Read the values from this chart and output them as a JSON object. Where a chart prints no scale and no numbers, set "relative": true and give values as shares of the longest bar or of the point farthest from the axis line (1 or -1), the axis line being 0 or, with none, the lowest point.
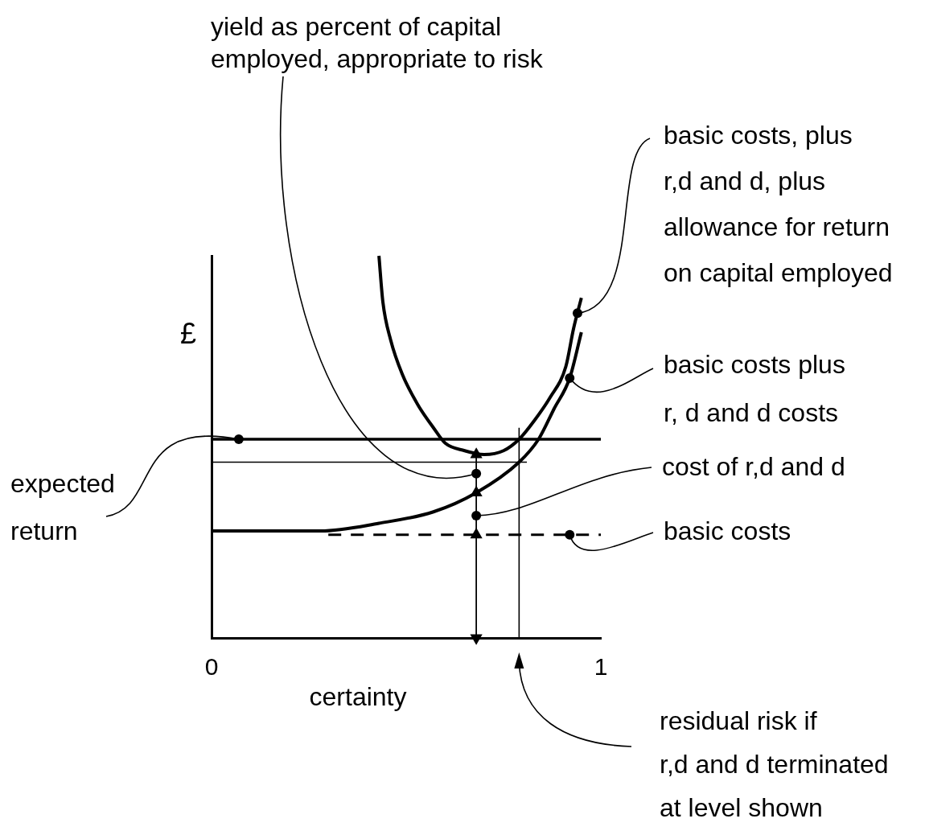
{
  "chart_data": {
    "type": "line",
    "relative": true,
    "xlabel": "certainty",
    "ylabel": "£",
    "xlim": [
      0,
      1
    ],
    "xticks": [
      0,
      1
    ],
    "tick_labels": "x",
    "legend": false,
    "marker": "none",
    "line_style": "solid",
    "series": [
      {
        "color": "#000000",
        "x": [
          0,
          1
        ],
        "values": [
          0.52,
          0.52
        ]
      },
      {
        "color": "#000000",
        "x": [
          0.3,
          1
        ],
        "values": [
          0.27,
          0.27
        ],
        "line_style": "dashed"
      },
      {
        "color": "#000000",
        "x": [
          0,
          0.28,
          0.43,
          0.57,
          0.68,
          0.79,
          0.84,
          0.88,
          0.92,
          0.95
        ],
        "values": [
          0.28,
          0.28,
          0.3,
          0.33,
          0.38,
          0.46,
          0.52,
          0.6,
          0.68,
          0.8
        ]
      },
      {
        "color": "#000000",
        "x": [
          0.43,
          0.44,
          0.46,
          0.49,
          0.53,
          0.57,
          0.6,
          0.65,
          0.7,
          0.75,
          0.79,
          0.83,
          0.87,
          0.91,
          0.93,
          0.95
        ],
        "values": [
          1,
          0.88,
          0.78,
          0.69,
          0.61,
          0.55,
          0.51,
          0.49,
          0.48,
          0.49,
          0.52,
          0.57,
          0.63,
          0.71,
          0.81,
          0.89
        ]
      },
      {
        "color": "#000000",
        "x": [
          0,
          0.81
        ],
        "values": [
          0.46,
          0.46
        ]
      },
      {
        "color": "#000000",
        "x": [
          0.79,
          0.79
        ],
        "values": [
          0,
          0.55
        ]
      },
      {
        "color": "#000000",
        "x": [
          0.68,
          0.68,
          0.68,
          0.68
        ],
        "values": [
          0,
          0.27,
          0.38,
          0.48
        ],
        "marker": "triangle"
      }
    ],
    "annotations": [
      {
        "text": "yield as percent of capital\nemployed, appropriate to risk",
        "x": 0.68,
        "y": 0.43
      },
      {
        "text": "basic costs, plus\nr,d and d, plus\nallowance for return\non capital employed",
        "x": 0.94,
        "y": 0.85
      },
      {
        "text": "basic costs plus\nr, d and d costs",
        "x": 0.92,
        "y": 0.68
      },
      {
        "text": "expected\nreturn",
        "x": 0.07,
        "y": 0.52
      },
      {
        "text": "cost of r,d and d",
        "x": 0.68,
        "y": 0.32
      },
      {
        "text": "basic costs",
        "x": 0.92,
        "y": 0.27
      },
      "residual risk if\nr,d and d terminated\nat level shown"
    ]
  }
}
